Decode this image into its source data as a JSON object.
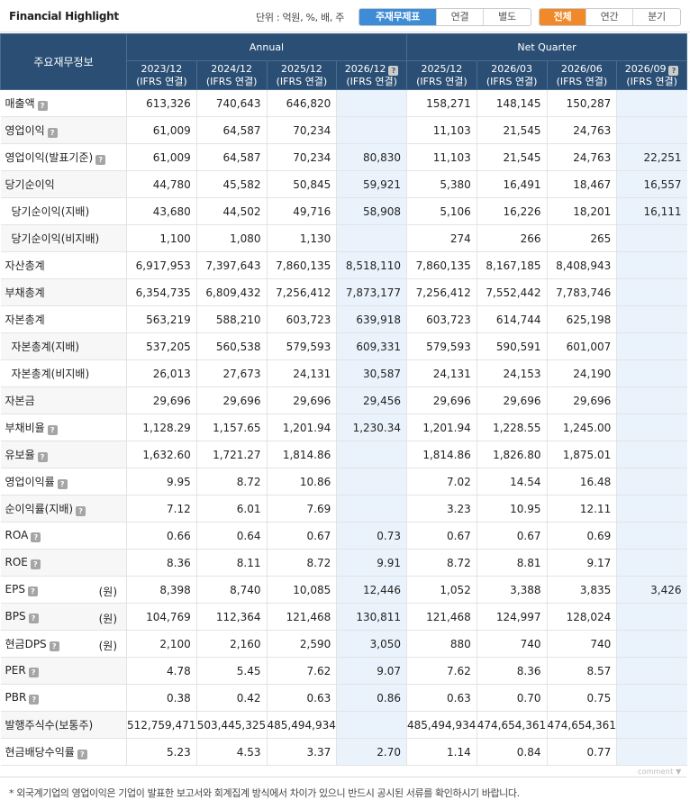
{
  "header": {
    "title": "Financial Highlight",
    "unit_label": "단위 : 억원, %, 배, 주",
    "view_tabs": [
      {
        "label": "주재무제표",
        "active": true,
        "width": 86
      },
      {
        "label": "연결",
        "active": false,
        "width": 52
      },
      {
        "label": "별도",
        "active": false,
        "width": 52
      }
    ],
    "period_tabs": [
      {
        "label": "전체",
        "active": true,
        "width": 52
      },
      {
        "label": "연간",
        "active": false,
        "width": 52
      },
      {
        "label": "분기",
        "active": false,
        "width": 52
      }
    ]
  },
  "table": {
    "key_header": "주요재무정보",
    "groups": [
      "Annual",
      "Net Quarter"
    ],
    "columns": [
      {
        "period": "2023/12",
        "basis": "(IFRS 연결)",
        "estimate": false
      },
      {
        "period": "2024/12",
        "basis": "(IFRS 연결)",
        "estimate": false
      },
      {
        "period": "2025/12",
        "basis": "(IFRS 연결)",
        "estimate": false
      },
      {
        "period": "2026/12",
        "basis": "(IFRS 연결)",
        "estimate": true
      },
      {
        "period": "2025/12",
        "basis": "(IFRS 연결)",
        "estimate": false
      },
      {
        "period": "2026/03",
        "basis": "(IFRS 연결)",
        "estimate": false
      },
      {
        "period": "2026/06",
        "basis": "(IFRS 연결)",
        "estimate": false
      },
      {
        "period": "2026/09",
        "basis": "(IFRS 연결)",
        "estimate": true
      }
    ],
    "rows": [
      {
        "label": "매출액",
        "help": true,
        "indent": false,
        "unit": "",
        "values": [
          "613,326",
          "740,643",
          "646,820",
          "",
          "158,271",
          "148,145",
          "150,287",
          ""
        ]
      },
      {
        "label": "영업이익",
        "help": true,
        "indent": false,
        "unit": "",
        "values": [
          "61,009",
          "64,587",
          "70,234",
          "",
          "11,103",
          "21,545",
          "24,763",
          ""
        ]
      },
      {
        "label": "영업이익(발표기준)",
        "help": true,
        "indent": false,
        "unit": "",
        "values": [
          "61,009",
          "64,587",
          "70,234",
          "80,830",
          "11,103",
          "21,545",
          "24,763",
          "22,251"
        ]
      },
      {
        "label": "당기순이익",
        "help": false,
        "indent": false,
        "unit": "",
        "values": [
          "44,780",
          "45,582",
          "50,845",
          "59,921",
          "5,380",
          "16,491",
          "18,467",
          "16,557"
        ]
      },
      {
        "label": "당기순이익(지배)",
        "help": false,
        "indent": true,
        "unit": "",
        "values": [
          "43,680",
          "44,502",
          "49,716",
          "58,908",
          "5,106",
          "16,226",
          "18,201",
          "16,111"
        ]
      },
      {
        "label": "당기순이익(비지배)",
        "help": false,
        "indent": true,
        "unit": "",
        "values": [
          "1,100",
          "1,080",
          "1,130",
          "",
          "274",
          "266",
          "265",
          ""
        ]
      },
      {
        "label": "자산총계",
        "help": false,
        "indent": false,
        "unit": "",
        "values": [
          "6,917,953",
          "7,397,643",
          "7,860,135",
          "8,518,110",
          "7,860,135",
          "8,167,185",
          "8,408,943",
          ""
        ]
      },
      {
        "label": "부채총계",
        "help": false,
        "indent": false,
        "unit": "",
        "values": [
          "6,354,735",
          "6,809,432",
          "7,256,412",
          "7,873,177",
          "7,256,412",
          "7,552,442",
          "7,783,746",
          ""
        ]
      },
      {
        "label": "자본총계",
        "help": false,
        "indent": false,
        "unit": "",
        "values": [
          "563,219",
          "588,210",
          "603,723",
          "639,918",
          "603,723",
          "614,744",
          "625,198",
          ""
        ]
      },
      {
        "label": "자본총계(지배)",
        "help": false,
        "indent": true,
        "unit": "",
        "values": [
          "537,205",
          "560,538",
          "579,593",
          "609,331",
          "579,593",
          "590,591",
          "601,007",
          ""
        ]
      },
      {
        "label": "자본총계(비지배)",
        "help": false,
        "indent": true,
        "unit": "",
        "values": [
          "26,013",
          "27,673",
          "24,131",
          "30,587",
          "24,131",
          "24,153",
          "24,190",
          ""
        ]
      },
      {
        "label": "자본금",
        "help": false,
        "indent": false,
        "unit": "",
        "values": [
          "29,696",
          "29,696",
          "29,696",
          "29,456",
          "29,696",
          "29,696",
          "29,696",
          ""
        ]
      },
      {
        "label": "부채비율",
        "help": true,
        "indent": false,
        "unit": "",
        "values": [
          "1,128.29",
          "1,157.65",
          "1,201.94",
          "1,230.34",
          "1,201.94",
          "1,228.55",
          "1,245.00",
          ""
        ]
      },
      {
        "label": "유보율",
        "help": true,
        "indent": false,
        "unit": "",
        "values": [
          "1,632.60",
          "1,721.27",
          "1,814.86",
          "",
          "1,814.86",
          "1,826.80",
          "1,875.01",
          ""
        ]
      },
      {
        "label": "영업이익률",
        "help": true,
        "indent": false,
        "unit": "",
        "values": [
          "9.95",
          "8.72",
          "10.86",
          "",
          "7.02",
          "14.54",
          "16.48",
          ""
        ]
      },
      {
        "label": "순이익률(지배)",
        "help": true,
        "indent": false,
        "unit": "",
        "values": [
          "7.12",
          "6.01",
          "7.69",
          "",
          "3.23",
          "10.95",
          "12.11",
          ""
        ]
      },
      {
        "label": "ROA",
        "help": true,
        "indent": false,
        "unit": "",
        "values": [
          "0.66",
          "0.64",
          "0.67",
          "0.73",
          "0.67",
          "0.67",
          "0.69",
          ""
        ]
      },
      {
        "label": "ROE",
        "help": true,
        "indent": false,
        "unit": "",
        "values": [
          "8.36",
          "8.11",
          "8.72",
          "9.91",
          "8.72",
          "8.81",
          "9.17",
          ""
        ]
      },
      {
        "label": "EPS",
        "help": true,
        "indent": false,
        "unit": "(원)",
        "values": [
          "8,398",
          "8,740",
          "10,085",
          "12,446",
          "1,052",
          "3,388",
          "3,835",
          "3,426"
        ]
      },
      {
        "label": "BPS",
        "help": true,
        "indent": false,
        "unit": "(원)",
        "values": [
          "104,769",
          "112,364",
          "121,468",
          "130,811",
          "121,468",
          "124,997",
          "128,024",
          ""
        ]
      },
      {
        "label": "현금DPS",
        "help": true,
        "indent": false,
        "unit": "(원)",
        "values": [
          "2,100",
          "2,160",
          "2,590",
          "3,050",
          "880",
          "740",
          "740",
          ""
        ]
      },
      {
        "label": "PER",
        "help": true,
        "indent": false,
        "unit": "",
        "values": [
          "4.78",
          "5.45",
          "7.62",
          "9.07",
          "7.62",
          "8.36",
          "8.57",
          ""
        ]
      },
      {
        "label": "PBR",
        "help": true,
        "indent": false,
        "unit": "",
        "values": [
          "0.38",
          "0.42",
          "0.63",
          "0.86",
          "0.63",
          "0.70",
          "0.75",
          ""
        ]
      },
      {
        "label": "발행주식수(보통주)",
        "help": false,
        "indent": false,
        "unit": "",
        "values": [
          "512,759,471",
          "503,445,325",
          "485,494,934",
          "",
          "485,494,934",
          "474,654,361",
          "474,654,361",
          ""
        ]
      },
      {
        "label": "현금배당수익률",
        "help": true,
        "indent": false,
        "unit": "",
        "values": [
          "5.23",
          "4.53",
          "3.37",
          "2.70",
          "1.14",
          "0.84",
          "0.77",
          ""
        ]
      }
    ]
  },
  "help_glyph": "?",
  "comment_label": "comment ▼",
  "footnote": "* 외국계기업의 영업이익은 기업이 발표한 보고서와 회계집계 방식에서 차이가 있으니 반드시 공시된 서류를 확인하시기 바랍니다.",
  "colors": {
    "header_bg": "#2b4f74",
    "estimate_bg": "#eaf3fc",
    "tab_blue": "#3e8bd6",
    "tab_orange": "#f0892a"
  }
}
